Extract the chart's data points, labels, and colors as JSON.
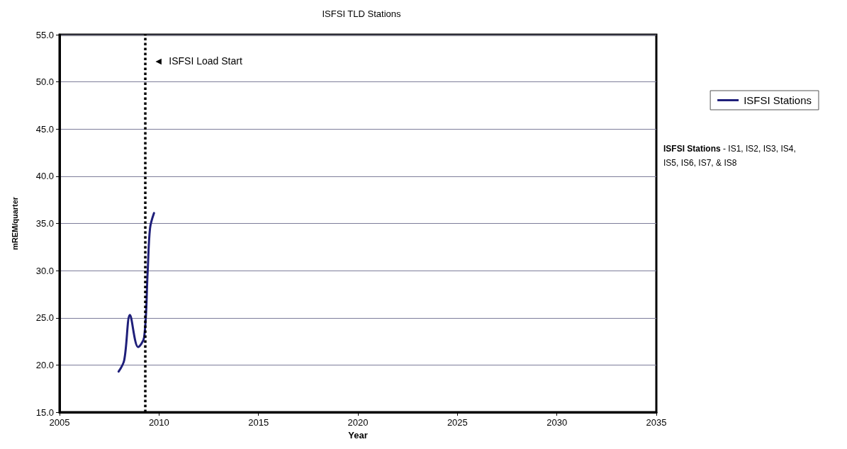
{
  "chart_data": {
    "type": "line",
    "title": "ISFSI TLD Stations",
    "xlabel": "Year",
    "ylabel": "mREM/quarter",
    "x": [
      2007.97,
      2008.25,
      2008.54,
      2008.95,
      2009.25,
      2009.43,
      2009.55,
      2009.75
    ],
    "series": [
      {
        "name": "ISFSI Stations",
        "color": "#1f1f7a",
        "values": [
          19.3,
          20.5,
          25.3,
          21.9,
          22.9,
          29.9,
          34.5,
          36.1
        ]
      }
    ],
    "xlim": [
      2005,
      2035
    ],
    "xticks": [
      2005,
      2010,
      2015,
      2020,
      2025,
      2030,
      2035
    ],
    "ylim": [
      15,
      55
    ],
    "yticks": [
      {
        "value": 15,
        "label": "15.0"
      },
      {
        "value": 20,
        "label": "20.0"
      },
      {
        "value": 25,
        "label": "25.0"
      },
      {
        "value": 30,
        "label": "30.0"
      },
      {
        "value": 35,
        "label": "35.0"
      },
      {
        "value": 40,
        "label": "40.0"
      },
      {
        "value": 45,
        "label": "45.0"
      },
      {
        "value": 50,
        "label": "50.0"
      },
      {
        "value": 55,
        "label": "55.0"
      }
    ],
    "ref_lines": [
      {
        "axis": "x",
        "value": 2009.3,
        "label": "◄  ISFSI Load Start",
        "color": "#000000",
        "line_style": "dotted"
      }
    ],
    "annotations": [
      "ISFSI Stations - IS1, IS2, IS3, IS4, IS5, IS6, IS7, & IS8"
    ],
    "grid": "y",
    "legend": "right",
    "marker": "none",
    "line_style": "solid"
  }
}
